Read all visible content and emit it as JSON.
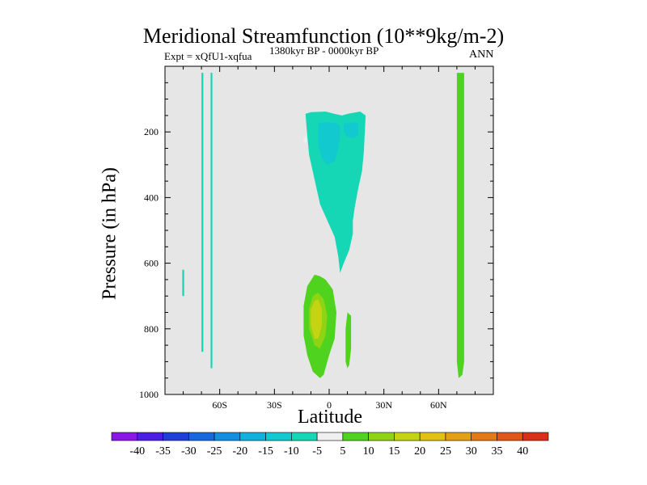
{
  "chart_data": {
    "type": "contour",
    "title": "Meridional Streamfunction (10**9kg/m-2)",
    "experiment": "Expt = xQfU1-xqfua",
    "period": "1380kyr BP - 0000kyr BP",
    "season": "ANN",
    "xlabel": "Latitude",
    "ylabel": "Pressure (in hPa)",
    "xlim": [
      -90,
      90
    ],
    "ylim": [
      0,
      1000
    ],
    "y_inverted": true,
    "x_ticks": [
      {
        "value": -60,
        "label": "60S"
      },
      {
        "value": -30,
        "label": "30S"
      },
      {
        "value": 0,
        "label": "0"
      },
      {
        "value": 30,
        "label": "30N"
      },
      {
        "value": 60,
        "label": "60N"
      }
    ],
    "y_ticks": [
      {
        "value": 200,
        "label": "200"
      },
      {
        "value": 400,
        "label": "400"
      },
      {
        "value": 600,
        "label": "600"
      },
      {
        "value": 800,
        "label": "800"
      },
      {
        "value": 1000,
        "label": "1000"
      }
    ],
    "missing_color": "#e6e6e6",
    "colorbar": {
      "boundaries": [
        -40,
        -35,
        -30,
        -25,
        -20,
        -15,
        -10,
        -5,
        5,
        10,
        15,
        20,
        25,
        30,
        35,
        40
      ],
      "colors": [
        "#8a17e6",
        "#4c1de3",
        "#1f3fd8",
        "#1768dd",
        "#128fe0",
        "#10b1dd",
        "#12c9d0",
        "#16d7b5",
        "#f0f0f0",
        "#4fd31e",
        "#8fd414",
        "#c5d412",
        "#e1c112",
        "#e4a014",
        "#e37a16",
        "#e05719",
        "#d9301a"
      ]
    },
    "regions": [
      {
        "level": -10,
        "polygon": [
          [
            -13,
            145
          ],
          [
            -10,
            140
          ],
          [
            -2,
            138
          ],
          [
            3,
            145
          ],
          [
            7,
            150
          ],
          [
            10,
            145
          ],
          [
            17,
            138
          ],
          [
            20,
            150
          ],
          [
            19,
            260
          ],
          [
            18,
            320
          ],
          [
            16,
            370
          ],
          [
            14,
            430
          ],
          [
            13,
            470
          ],
          [
            13,
            510
          ],
          [
            11,
            560
          ],
          [
            8,
            600
          ],
          [
            6,
            630
          ],
          [
            5,
            580
          ],
          [
            3,
            520
          ],
          [
            -1,
            470
          ],
          [
            -5,
            420
          ],
          [
            -7,
            370
          ],
          [
            -9,
            320
          ],
          [
            -11,
            270
          ],
          [
            -12,
            210
          ]
        ]
      },
      {
        "level": -15,
        "polygon": [
          [
            -6,
            175
          ],
          [
            -3,
            170
          ],
          [
            3,
            172
          ],
          [
            6,
            180
          ],
          [
            6,
            210
          ],
          [
            5,
            250
          ],
          [
            3,
            290
          ],
          [
            -1,
            300
          ],
          [
            -4,
            280
          ],
          [
            -6,
            240
          ],
          [
            -6,
            200
          ]
        ]
      },
      {
        "level": -15,
        "polygon": [
          [
            8,
            175
          ],
          [
            13,
            170
          ],
          [
            16,
            175
          ],
          [
            16,
            210
          ],
          [
            13,
            220
          ],
          [
            10,
            215
          ],
          [
            8,
            200
          ]
        ]
      },
      {
        "level": -5,
        "polygon": [
          [
            -14,
            220
          ],
          [
            -13,
            215
          ],
          [
            -12,
            225
          ],
          [
            -13,
            235
          ],
          [
            -14,
            230
          ]
        ]
      },
      {
        "level": -10,
        "polygon": [
          [
            -70,
            20
          ],
          [
            -69,
            20
          ],
          [
            -69,
            870
          ],
          [
            -70,
            870
          ]
        ]
      },
      {
        "level": -10,
        "polygon": [
          [
            -65,
            20
          ],
          [
            -64,
            20
          ],
          [
            -64,
            920
          ],
          [
            -65,
            920
          ]
        ]
      },
      {
        "level": -10,
        "polygon": [
          [
            -80.5,
            620
          ],
          [
            -79.5,
            620
          ],
          [
            -79.5,
            700
          ],
          [
            -80.5,
            700
          ]
        ]
      },
      {
        "level": 5,
        "polygon": [
          [
            -2,
            650
          ],
          [
            2,
            680
          ],
          [
            4,
            750
          ],
          [
            3,
            830
          ],
          [
            0,
            880
          ],
          [
            -3,
            940
          ],
          [
            -5,
            950
          ],
          [
            -9,
            930
          ],
          [
            -12,
            880
          ],
          [
            -14,
            820
          ],
          [
            -14,
            730
          ],
          [
            -12,
            670
          ],
          [
            -8,
            635
          ],
          [
            -5,
            640
          ]
        ]
      },
      {
        "level": 10,
        "polygon": [
          [
            -6,
            690
          ],
          [
            -3,
            710
          ],
          [
            -1,
            760
          ],
          [
            -2,
            820
          ],
          [
            -5,
            860
          ],
          [
            -8,
            850
          ],
          [
            -11,
            800
          ],
          [
            -11,
            740
          ],
          [
            -9,
            700
          ]
        ]
      },
      {
        "level": 15,
        "polygon": [
          [
            -6,
            710
          ],
          [
            -4,
            740
          ],
          [
            -4,
            790
          ],
          [
            -6,
            830
          ],
          [
            -8,
            830
          ],
          [
            -10,
            790
          ],
          [
            -10,
            740
          ],
          [
            -8,
            715
          ]
        ]
      },
      {
        "level": 5,
        "polygon": [
          [
            10,
            750
          ],
          [
            12,
            760
          ],
          [
            12,
            860
          ],
          [
            11,
            910
          ],
          [
            10,
            920
          ],
          [
            9,
            900
          ],
          [
            9,
            800
          ]
        ]
      },
      {
        "level": 5,
        "polygon": [
          [
            70,
            20
          ],
          [
            74,
            20
          ],
          [
            74,
            900
          ],
          [
            73,
            940
          ],
          [
            71,
            950
          ],
          [
            70,
            900
          ]
        ]
      }
    ]
  }
}
